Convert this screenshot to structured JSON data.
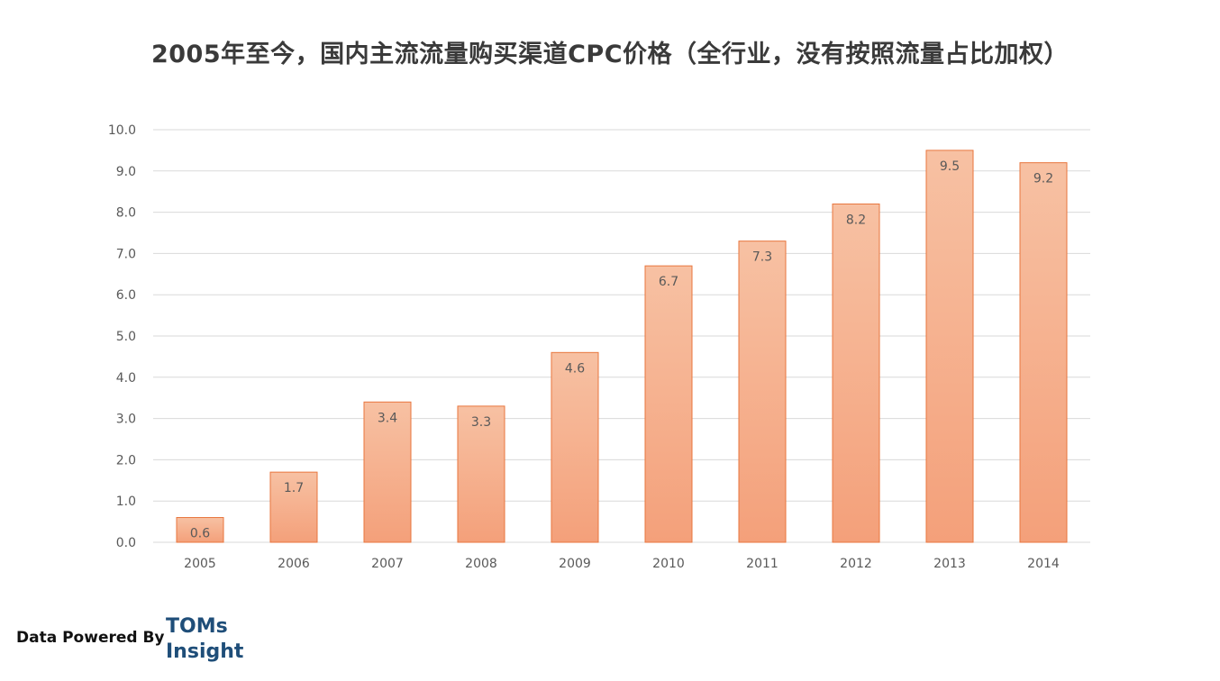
{
  "chart_data": {
    "type": "bar",
    "title": "2005年至今，国内主流流量购买渠道CPC价格（全行业，没有按照流量占比加权）",
    "categories": [
      "2005",
      "2006",
      "2007",
      "2008",
      "2009",
      "2010",
      "2011",
      "2012",
      "2013",
      "2014"
    ],
    "values": [
      0.6,
      1.7,
      3.4,
      3.3,
      4.6,
      6.7,
      7.3,
      8.2,
      9.5,
      9.2
    ],
    "value_labels": [
      "0.6",
      "1.7",
      "3.4",
      "3.3",
      "4.6",
      "6.7",
      "7.3",
      "8.2",
      "9.5",
      "9.2"
    ],
    "y_ticks": [
      "0.0",
      "1.0",
      "2.0",
      "3.0",
      "4.0",
      "5.0",
      "6.0",
      "7.0",
      "8.0",
      "9.0",
      "10.0"
    ],
    "ylim": [
      0,
      10
    ],
    "xlabel": "",
    "ylabel": "",
    "grid": true,
    "colors": {
      "bar_top": "#f7c1a3",
      "bar_bottom": "#f4a07a",
      "bar_border": "#e8763e",
      "grid": "#d9d9d9",
      "tick_text": "#595959",
      "label_text": "#595959"
    }
  },
  "footer": {
    "powered_by": "Data Powered By",
    "brand_line1": "TOMs",
    "brand_line2": "Insight"
  }
}
